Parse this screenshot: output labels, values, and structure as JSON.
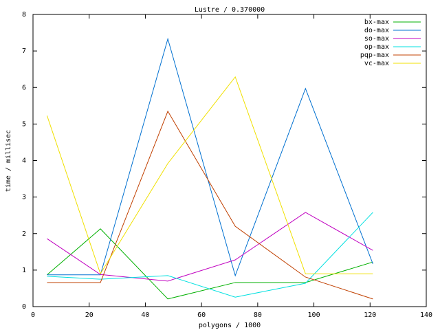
{
  "chart_data": {
    "type": "line",
    "title": "Lustre / 0.370000",
    "xlabel": "polygons / 1000",
    "ylabel": "time / millisec",
    "x": [
      5,
      24,
      48,
      72,
      97,
      121
    ],
    "series": [
      {
        "name": "bx-max",
        "color": "#00b000",
        "values": [
          0.87,
          2.13,
          0.21,
          0.66,
          0.66,
          1.22
        ]
      },
      {
        "name": "do-max",
        "color": "#0070d0",
        "values": [
          0.87,
          0.87,
          7.33,
          0.85,
          5.97,
          1.17
        ]
      },
      {
        "name": "so-max",
        "color": "#c000c0",
        "values": [
          1.86,
          0.88,
          0.7,
          1.28,
          2.58,
          1.54
        ]
      },
      {
        "name": "op-max",
        "color": "#00e0e0",
        "values": [
          0.83,
          0.75,
          0.85,
          0.26,
          0.64,
          2.58
        ]
      },
      {
        "name": "pqp-max",
        "color": "#c04000",
        "values": [
          0.66,
          0.66,
          5.35,
          2.2,
          0.81,
          0.21
        ]
      },
      {
        "name": "vc-max",
        "color": "#f0e000",
        "values": [
          5.23,
          0.9,
          3.92,
          6.29,
          0.9,
          0.9
        ]
      }
    ],
    "xlim": [
      0,
      140
    ],
    "xticks": [
      0,
      20,
      40,
      60,
      80,
      100,
      120,
      140
    ],
    "ylim": [
      0,
      8
    ],
    "yticks": [
      0,
      1,
      2,
      3,
      4,
      5,
      6,
      7,
      8
    ],
    "legend": "top-right",
    "grid": false
  }
}
